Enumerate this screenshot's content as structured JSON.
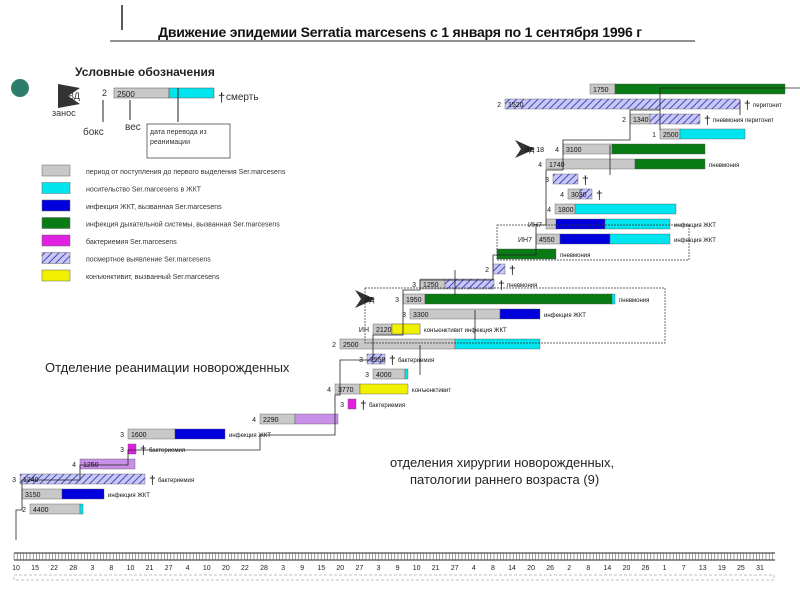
{
  "title": "Движение эпидемии Serratia marcesens с 1 января по 1 сентября 1996 г",
  "legend": {
    "title": "Условные обозначения",
    "key": {
      "label_in": "ВД",
      "label_zanos": "занос",
      "num": "2",
      "weight": "2500",
      "label_death": "смерть",
      "label_box": "бокс",
      "label_ves": "вес",
      "label_transfer": "дата перевода из реанимации"
    },
    "items": [
      {
        "label": "период от поступления до первого выделения Ser.marcesens",
        "color": "#c8c8c8"
      },
      {
        "label": "носительство Ser.marcesens в ЖКТ",
        "color": "#00e5ee"
      },
      {
        "label": "инфекция ЖКТ, вызванная Ser.marcesens",
        "color": "#0000dd"
      },
      {
        "label": "инфекция дыхательной системы, вызванная Ser.marcesens",
        "color": "#0a7a14"
      },
      {
        "label": "бактериемия Ser.marcesens",
        "color": "#e020e0"
      },
      {
        "label": "посмертное выявление Ser.marcesens",
        "color": "#9090e8"
      },
      {
        "label": "конъюнктивит, вызванный Ser.marcesens",
        "color": "#f0f000"
      }
    ]
  },
  "sections": {
    "nicu": "Отделение реанимации новорожденных",
    "surgery_line1": "отделения хирургии новорожденных,",
    "surgery_line2": "патологии раннего возраста (9)"
  },
  "colors": {
    "grey": "#c8c8c8",
    "cyan": "#00e5ee",
    "blue": "#0000dd",
    "green": "#0a7a14",
    "magenta": "#e020e0",
    "hatch": "#9090e8",
    "yellow": "#f0f000",
    "lilac": "#c890e8"
  },
  "chart_data": {
    "type": "gantt",
    "x_axis": {
      "tick_labels": [
        "10",
        "15",
        "22",
        "28",
        "3",
        "8",
        "10",
        "21",
        "27",
        "4",
        "10",
        "20",
        "22",
        "28",
        "3",
        "9",
        "15",
        "20",
        "27",
        "3",
        "9",
        "10",
        "21",
        "27",
        "4",
        "8",
        "14",
        "20",
        "26",
        "2",
        "8",
        "14",
        "20",
        "26",
        "1",
        "7",
        "13",
        "19",
        "25",
        "31"
      ]
    },
    "rows": [
      {
        "num": "",
        "weight": "1750",
        "annotation": "",
        "segments": [
          {
            "color": "grey",
            "start": 590,
            "end": 615
          },
          {
            "color": "green",
            "start": 615,
            "end": 785
          }
        ]
      },
      {
        "num": "2",
        "weight": "1520",
        "annotation": "перитонит",
        "death": true,
        "segments": [
          {
            "color": "hatch",
            "start": 505,
            "end": 740
          }
        ]
      },
      {
        "num": "2",
        "weight": "1340",
        "annotation": "пневмония перитонит",
        "death": true,
        "segments": [
          {
            "color": "grey",
            "start": 630,
            "end": 650
          },
          {
            "color": "hatch",
            "start": 650,
            "end": 700
          }
        ]
      },
      {
        "num": "1",
        "weight": "2500",
        "annotation": "",
        "segments": [
          {
            "color": "grey",
            "start": 660,
            "end": 680
          },
          {
            "color": "cyan",
            "start": 680,
            "end": 745
          }
        ]
      },
      {
        "num": "4",
        "weight": "3100",
        "annotation": "",
        "arrow": "ВД 18",
        "segments": [
          {
            "color": "grey",
            "start": 563,
            "end": 612
          },
          {
            "color": "green",
            "start": 612,
            "end": 705
          }
        ]
      },
      {
        "num": "4",
        "weight": "1740",
        "annotation": "пневмония",
        "segments": [
          {
            "color": "grey",
            "start": 546,
            "end": 635
          },
          {
            "color": "green",
            "start": 635,
            "end": 705
          }
        ]
      },
      {
        "num": "3",
        "weight": "",
        "annotation": "",
        "death": true,
        "segments": [
          {
            "color": "hatch",
            "start": 553,
            "end": 578
          }
        ]
      },
      {
        "num": "4",
        "weight": "3030",
        "annotation": "",
        "death": true,
        "segments": [
          {
            "color": "grey",
            "start": 568,
            "end": 580
          },
          {
            "color": "hatch",
            "start": 580,
            "end": 592
          }
        ]
      },
      {
        "num": "4",
        "weight": "1800",
        "annotation": "",
        "segments": [
          {
            "color": "grey",
            "start": 555,
            "end": 575
          },
          {
            "color": "cyan",
            "start": 575,
            "end": 676
          }
        ]
      },
      {
        "num": "ИН7",
        "weight": "",
        "annotation": "инфекция ЖКТ",
        "segments": [
          {
            "color": "grey",
            "start": 546,
            "end": 556
          },
          {
            "color": "blue",
            "start": 556,
            "end": 605
          },
          {
            "color": "cyan",
            "start": 605,
            "end": 670
          }
        ]
      },
      {
        "num": "ИН7",
        "weight": "4550",
        "annotation": "инфекция ЖКТ",
        "segments": [
          {
            "color": "grey",
            "start": 536,
            "end": 560
          },
          {
            "color": "blue",
            "start": 560,
            "end": 610
          },
          {
            "color": "cyan",
            "start": 610,
            "end": 670
          }
        ]
      },
      {
        "num": "",
        "weight": "",
        "annotation": "пневмония",
        "segments": [
          {
            "color": "green",
            "start": 497,
            "end": 556
          }
        ]
      },
      {
        "num": "2",
        "weight": "",
        "annotation": "",
        "death": true,
        "segments": [
          {
            "color": "hatch",
            "start": 493,
            "end": 505
          }
        ]
      },
      {
        "num": "3",
        "weight": "1250",
        "annotation": "пневмония",
        "death": true,
        "segments": [
          {
            "color": "grey",
            "start": 420,
            "end": 445
          },
          {
            "color": "hatch",
            "start": 445,
            "end": 494
          }
        ]
      },
      {
        "num": "3",
        "weight": "1950",
        "annotation": "пневмония",
        "arrow": "ВД",
        "segments": [
          {
            "color": "grey",
            "start": 403,
            "end": 425
          },
          {
            "color": "green",
            "start": 425,
            "end": 612
          },
          {
            "color": "cyan",
            "start": 612,
            "end": 614
          }
        ]
      },
      {
        "num": "3",
        "weight": "3300",
        "annotation": "инфекция ЖКТ",
        "segments": [
          {
            "color": "grey",
            "start": 410,
            "end": 500
          },
          {
            "color": "blue",
            "start": 500,
            "end": 540
          }
        ]
      },
      {
        "num": "ИН",
        "weight": "2120",
        "annotation": "конъюнктивит инфекция ЖКТ",
        "segments": [
          {
            "color": "grey",
            "start": 373,
            "end": 392
          },
          {
            "color": "blue",
            "start": 392,
            "end": 420
          },
          {
            "color": "yellow",
            "start": 392,
            "end": 420
          }
        ]
      },
      {
        "num": "2",
        "weight": "2500",
        "annotation": "",
        "segments": [
          {
            "color": "grey",
            "start": 340,
            "end": 455
          },
          {
            "color": "cyan",
            "start": 455,
            "end": 540
          }
        ]
      },
      {
        "num": "3",
        "weight": "1550",
        "annotation": "бактериемия",
        "death": true,
        "segments": [
          {
            "color": "hatch",
            "start": 367,
            "end": 385
          }
        ]
      },
      {
        "num": "3",
        "weight": "4000",
        "annotation": "",
        "segments": [
          {
            "color": "grey",
            "start": 373,
            "end": 405
          },
          {
            "color": "cyan",
            "start": 405,
            "end": 408
          }
        ]
      },
      {
        "num": "4",
        "weight": "3770",
        "annotation": "конъюнктивит",
        "segments": [
          {
            "color": "grey",
            "start": 335,
            "end": 360
          },
          {
            "color": "yellow",
            "start": 360,
            "end": 408
          }
        ]
      },
      {
        "num": "3",
        "weight": "",
        "annotation": "бактериемия",
        "death": true,
        "segments": [
          {
            "color": "magenta",
            "start": 348,
            "end": 356
          }
        ]
      },
      {
        "num": "4",
        "weight": "2290",
        "annotation": "",
        "segments": [
          {
            "color": "grey",
            "start": 260,
            "end": 295
          },
          {
            "color": "lilac",
            "start": 295,
            "end": 338
          }
        ]
      },
      {
        "num": "3",
        "weight": "1600",
        "annotation": "инфекция ЖКТ",
        "segments": [
          {
            "color": "grey",
            "start": 128,
            "end": 175
          },
          {
            "color": "blue",
            "start": 175,
            "end": 225
          }
        ]
      },
      {
        "num": "3",
        "weight": "",
        "annotation": "бактериемия",
        "death": true,
        "segments": [
          {
            "color": "magenta",
            "start": 128,
            "end": 136
          }
        ]
      },
      {
        "num": "4",
        "weight": "1250",
        "annotation": "",
        "segments": [
          {
            "color": "lilac",
            "start": 80,
            "end": 135
          }
        ]
      },
      {
        "num": "3",
        "weight": "1240",
        "annotation": "бактериемия",
        "death": true,
        "segments": [
          {
            "color": "hatch",
            "start": 20,
            "end": 145
          }
        ]
      },
      {
        "num": "",
        "weight": "3150",
        "annotation": "инфекция ЖКТ",
        "segments": [
          {
            "color": "grey",
            "start": 22,
            "end": 62
          },
          {
            "color": "blue",
            "start": 62,
            "end": 104
          }
        ]
      },
      {
        "num": "2",
        "weight": "4400",
        "annotation": "",
        "segments": [
          {
            "color": "grey",
            "start": 30,
            "end": 80
          },
          {
            "color": "cyan",
            "start": 80,
            "end": 80
          }
        ]
      }
    ]
  }
}
